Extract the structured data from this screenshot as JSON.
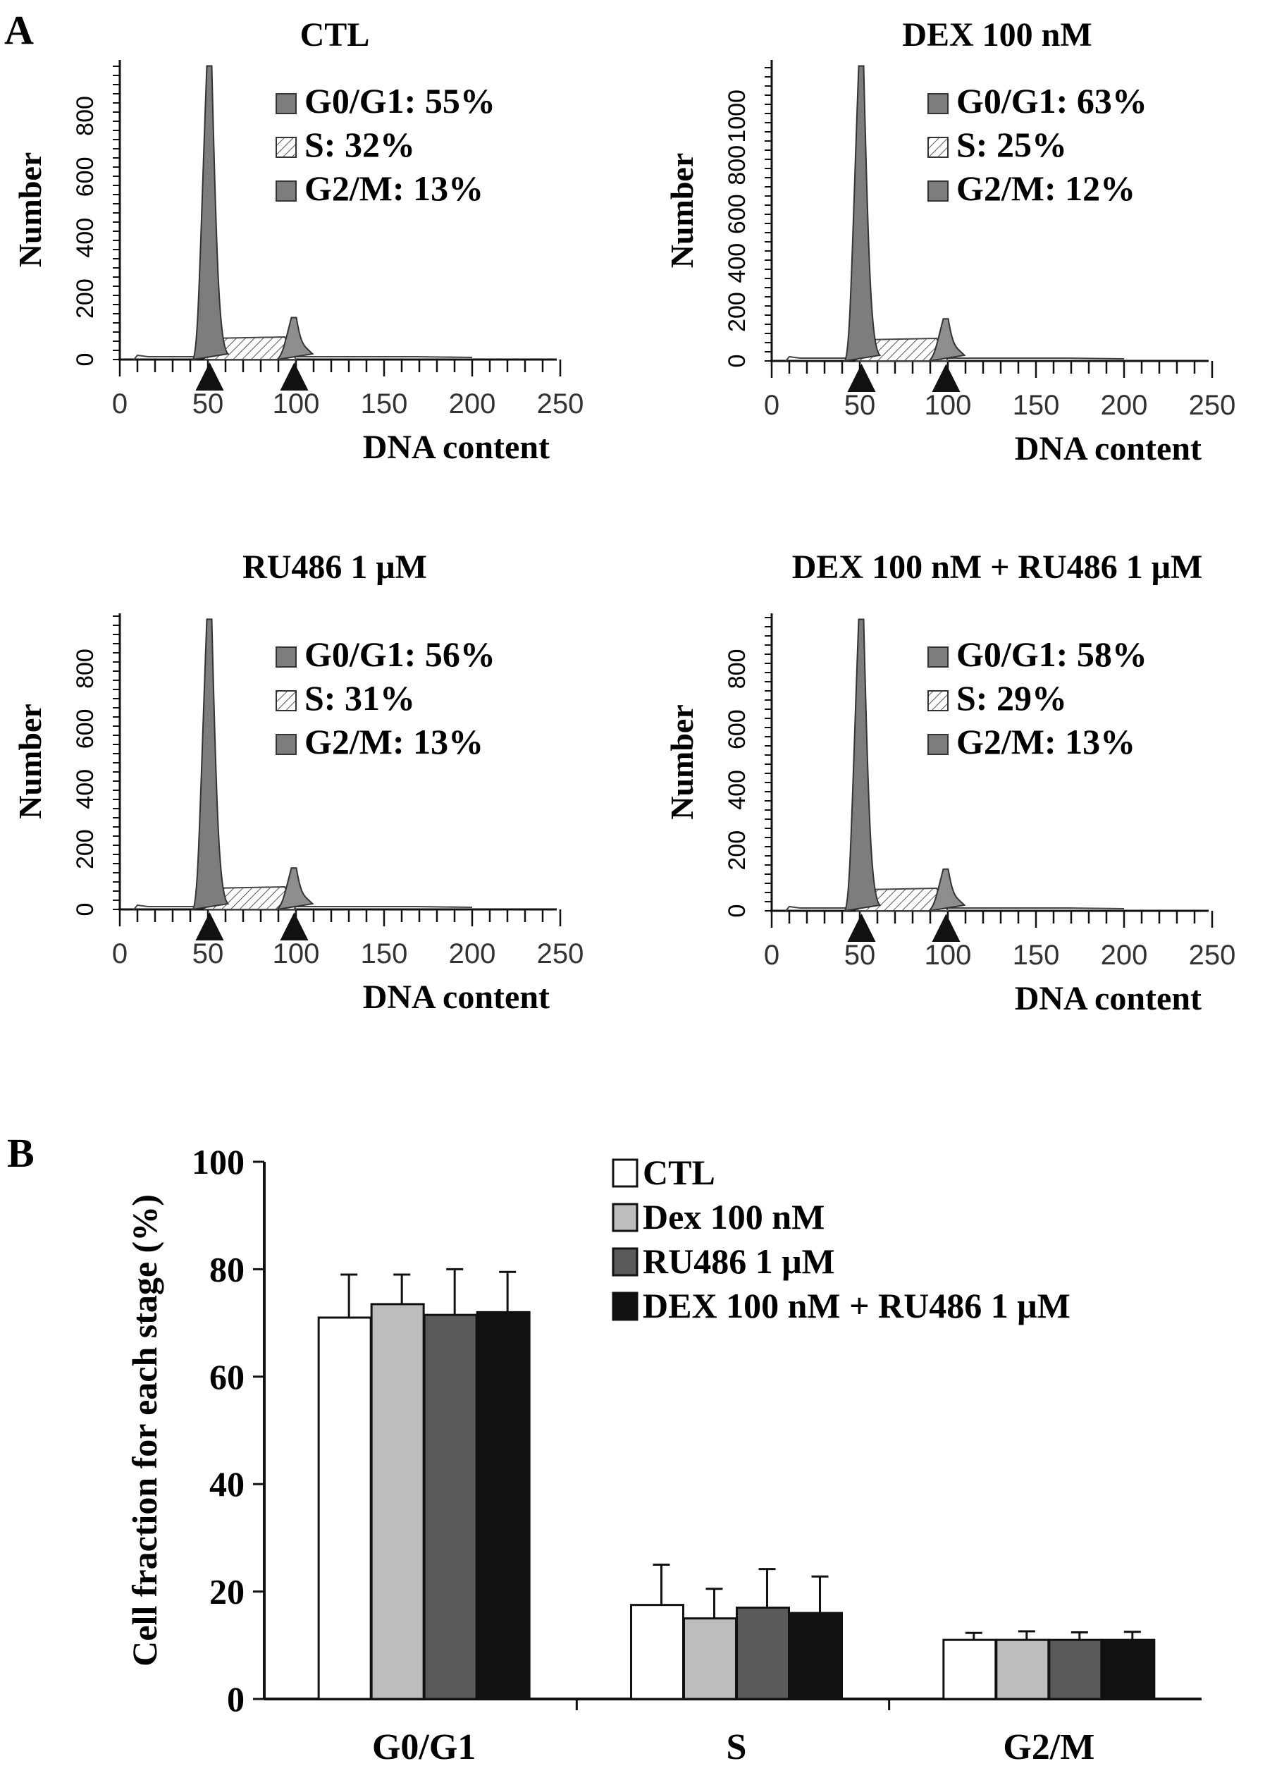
{
  "panel_labels": {
    "a": "A",
    "b": "B"
  },
  "histograms": [
    {
      "title": "CTL",
      "ylabel": "Number",
      "xlabel": "DNA content",
      "yticks": [
        "0",
        "200",
        "400",
        "600",
        "800"
      ],
      "xticks": [
        "0",
        "50",
        "100",
        "150",
        "200",
        "250"
      ],
      "legend": [
        {
          "label": "G0/G1: 55%"
        },
        {
          "label": "S: 32%"
        },
        {
          "label": "G2/M: 13%"
        }
      ]
    },
    {
      "title": "DEX 100 nM",
      "ylabel": "Number",
      "xlabel": "DNA content",
      "yticks": [
        "0",
        "200",
        "400",
        "600",
        "800",
        "1000"
      ],
      "xticks": [
        "0",
        "50",
        "100",
        "150",
        "200",
        "250"
      ],
      "legend": [
        {
          "label": "G0/G1: 63%"
        },
        {
          "label": "S: 25%"
        },
        {
          "label": "G2/M: 12%"
        }
      ]
    },
    {
      "title": "RU486 1 μM",
      "ylabel": "Number",
      "xlabel": "DNA content",
      "yticks": [
        "0",
        "200",
        "400",
        "600",
        "800"
      ],
      "xticks": [
        "0",
        "50",
        "100",
        "150",
        "200",
        "250"
      ],
      "legend": [
        {
          "label": "G0/G1: 56%"
        },
        {
          "label": "S: 31%"
        },
        {
          "label": "G2/M: 13%"
        }
      ]
    },
    {
      "title": "DEX 100 nM + RU486 1 μM",
      "ylabel": "Number",
      "xlabel": "DNA content",
      "yticks": [
        "0",
        "200",
        "400",
        "600",
        "800"
      ],
      "xticks": [
        "0",
        "50",
        "100",
        "150",
        "200",
        "250"
      ],
      "legend": [
        {
          "label": "G0/G1: 58%"
        },
        {
          "label": "S: 29%"
        },
        {
          "label": "G2/M: 13%"
        }
      ]
    }
  ],
  "colors": {
    "peak": "#7d7d7d",
    "g2m": "#8e8e8e",
    "black": "#111111"
  },
  "chart_data": {
    "type": "bar",
    "ylabel": "Cell fraction for each stage (%)",
    "categories": [
      "G0/G1",
      "S",
      "G2/M"
    ],
    "ylim": [
      0,
      100
    ],
    "yticks": [
      "0",
      "20",
      "40",
      "60",
      "80",
      "100"
    ],
    "legend_position": "top-right",
    "series": [
      {
        "name": "CTL",
        "color": "#ffffff",
        "values": [
          71,
          17.5,
          11
        ],
        "errors": [
          8,
          7.5,
          1.3
        ]
      },
      {
        "name": "Dex 100 nM",
        "color": "#bdbdbd",
        "values": [
          73.5,
          15,
          11
        ],
        "errors": [
          5.5,
          5.5,
          1.6
        ]
      },
      {
        "name": "RU486 1 μM",
        "color": "#5a5a5a",
        "values": [
          71.5,
          17,
          11
        ],
        "errors": [
          8.5,
          7.2,
          1.4
        ]
      },
      {
        "name": "DEX 100 nM + RU486 1 μM",
        "color": "#111111",
        "values": [
          72,
          16,
          11
        ],
        "errors": [
          7.5,
          6.8,
          1.5
        ]
      }
    ]
  }
}
